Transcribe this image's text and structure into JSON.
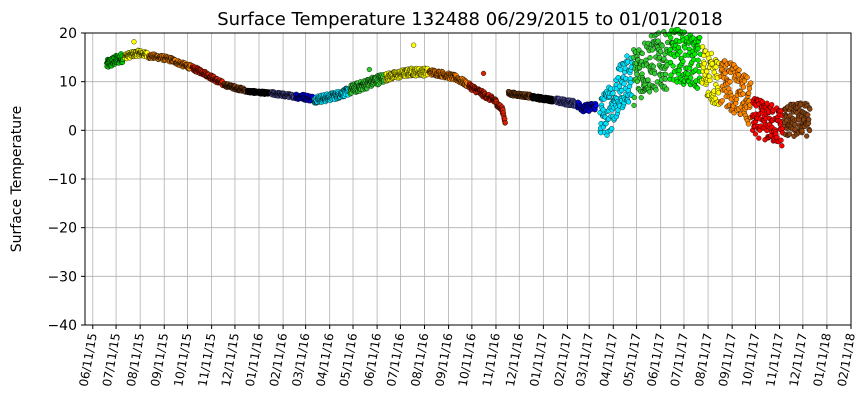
{
  "chart_data": {
    "type": "scatter",
    "title": "Surface Temperature 132488  06/29/2015 to 01/01/2018",
    "xlabel": "",
    "ylabel": "Surface Temperature",
    "ylim": [
      -40,
      20
    ],
    "yticks": [
      -40,
      -30,
      -20,
      -10,
      0,
      10,
      20
    ],
    "xlim": [
      "2015-06-01",
      "2018-02-11"
    ],
    "grid": true,
    "xticks": [
      "2015-06-11",
      "2015-07-11",
      "2015-08-11",
      "2015-09-11",
      "2015-10-11",
      "2015-11-11",
      "2015-12-11",
      "2016-01-11",
      "2016-02-11",
      "2016-03-11",
      "2016-04-11",
      "2016-05-11",
      "2016-06-11",
      "2016-07-11",
      "2016-08-11",
      "2016-09-11",
      "2016-10-11",
      "2016-11-11",
      "2016-12-11",
      "2017-01-11",
      "2017-02-11",
      "2017-03-11",
      "2017-04-11",
      "2017-05-11",
      "2017-06-11",
      "2017-07-11",
      "2017-08-11",
      "2017-09-11",
      "2017-10-11",
      "2017-11-11",
      "2017-12-11",
      "2018-01-11",
      "2018-02-11"
    ],
    "xtick_labels": [
      "06/11/15",
      "07/11/15",
      "08/11/15",
      "09/11/15",
      "10/11/15",
      "11/11/15",
      "12/11/15",
      "01/11/16",
      "02/11/16",
      "03/11/16",
      "04/11/16",
      "05/11/16",
      "06/11/16",
      "07/11/16",
      "08/11/16",
      "09/11/16",
      "10/11/16",
      "11/11/16",
      "12/11/16",
      "01/11/17",
      "02/11/17",
      "03/11/17",
      "04/11/17",
      "05/11/17",
      "06/11/17",
      "07/11/17",
      "08/11/17",
      "09/11/17",
      "10/11/17",
      "11/11/17",
      "12/11/17",
      "01/11/18",
      "02/11/18"
    ],
    "series": [
      {
        "color": "#00cc00",
        "spread": 1.0,
        "points": [
          [
            "2015-06-29",
            13.5
          ],
          [
            "2015-07-05",
            14.0
          ],
          [
            "2015-07-12",
            14.5
          ],
          [
            "2015-07-20",
            15.0
          ]
        ]
      },
      {
        "color": "#ffff00",
        "spread": 0.6,
        "points": [
          [
            "2015-07-22",
            15.2
          ],
          [
            "2015-08-01",
            15.6
          ],
          [
            "2015-08-10",
            15.9
          ],
          [
            "2015-08-20",
            15.5
          ]
        ]
      },
      {
        "color": "#ff8800",
        "spread": 0.5,
        "points": [
          [
            "2015-08-22",
            15.3
          ],
          [
            "2015-09-05",
            15.0
          ],
          [
            "2015-09-20",
            14.5
          ],
          [
            "2015-10-05",
            13.5
          ],
          [
            "2015-10-15",
            13.0
          ]
        ]
      },
      {
        "color": "#dd2200",
        "spread": 0.5,
        "points": [
          [
            "2015-10-17",
            12.8
          ],
          [
            "2015-11-01",
            11.8
          ],
          [
            "2015-11-15",
            10.5
          ],
          [
            "2015-11-25",
            9.6
          ]
        ]
      },
      {
        "color": "#8b4513",
        "spread": 0.4,
        "points": [
          [
            "2015-11-27",
            9.4
          ],
          [
            "2015-12-10",
            8.8
          ],
          [
            "2015-12-25",
            8.2
          ]
        ]
      },
      {
        "color": "#000000",
        "spread": 0.3,
        "points": [
          [
            "2015-12-27",
            8.0
          ],
          [
            "2016-01-10",
            7.8
          ],
          [
            "2016-01-25",
            7.6
          ]
        ]
      },
      {
        "color": "#5050a0",
        "spread": 0.4,
        "points": [
          [
            "2016-01-27",
            7.6
          ],
          [
            "2016-02-10",
            7.3
          ],
          [
            "2016-02-25",
            7.0
          ]
        ]
      },
      {
        "color": "#0000ee",
        "spread": 0.6,
        "points": [
          [
            "2016-02-27",
            7.0
          ],
          [
            "2016-03-10",
            6.8
          ],
          [
            "2016-03-20",
            6.5
          ]
        ]
      },
      {
        "color": "#00e5ff",
        "spread": 0.8,
        "points": [
          [
            "2016-03-22",
            6.4
          ],
          [
            "2016-04-05",
            6.6
          ],
          [
            "2016-04-20",
            7.2
          ],
          [
            "2016-05-05",
            8.0
          ]
        ]
      },
      {
        "color": "#33cc33",
        "spread": 1.0,
        "points": [
          [
            "2016-05-07",
            8.3
          ],
          [
            "2016-05-20",
            9.0
          ],
          [
            "2016-06-05",
            10.0
          ],
          [
            "2016-06-20",
            10.8
          ]
        ]
      },
      {
        "color": "#ffff00",
        "spread": 0.8,
        "points": [
          [
            "2016-06-22",
            10.9
          ],
          [
            "2016-07-10",
            11.5
          ],
          [
            "2016-07-25",
            12.0
          ],
          [
            "2016-08-15",
            12.0
          ]
        ]
      },
      {
        "color": "#ff8800",
        "spread": 0.6,
        "points": [
          [
            "2016-08-17",
            12.0
          ],
          [
            "2016-09-01",
            11.6
          ],
          [
            "2016-09-20",
            10.8
          ],
          [
            "2016-10-05",
            9.5
          ]
        ]
      },
      {
        "color": "#dd2200",
        "spread": 0.6,
        "points": [
          [
            "2016-10-07",
            9.2
          ],
          [
            "2016-10-25",
            7.5
          ],
          [
            "2016-11-10",
            6.0
          ],
          [
            "2016-11-20",
            4.0
          ],
          [
            "2016-11-23",
            1.5
          ]
        ]
      },
      {
        "color": "#8b4513",
        "spread": 0.4,
        "points": [
          [
            "2016-11-27",
            7.6
          ],
          [
            "2016-12-10",
            7.3
          ],
          [
            "2016-12-25",
            7.0
          ]
        ]
      },
      {
        "color": "#000000",
        "spread": 0.4,
        "points": [
          [
            "2016-12-27",
            6.8
          ],
          [
            "2017-01-10",
            6.5
          ],
          [
            "2017-01-25",
            6.2
          ]
        ]
      },
      {
        "color": "#5050a0",
        "spread": 0.6,
        "points": [
          [
            "2017-01-27",
            6.1
          ],
          [
            "2017-02-08",
            5.8
          ],
          [
            "2017-02-22",
            5.5
          ]
        ]
      },
      {
        "color": "#0000ee",
        "spread": 0.8,
        "points": [
          [
            "2017-02-24",
            5.2
          ],
          [
            "2017-03-05",
            4.5
          ],
          [
            "2017-03-20",
            5.0
          ]
        ]
      },
      {
        "color": "#00e5ff",
        "spread": 5.0,
        "points": [
          [
            "2017-03-25",
            3.0
          ],
          [
            "2017-04-05",
            4.0
          ],
          [
            "2017-04-15",
            7.0
          ],
          [
            "2017-04-25",
            10.0
          ],
          [
            "2017-05-05",
            11.0
          ]
        ]
      },
      {
        "color": "#33cc33",
        "spread": 6.0,
        "points": [
          [
            "2017-05-07",
            11.0
          ],
          [
            "2017-05-20",
            13.0
          ],
          [
            "2017-06-05",
            14.0
          ],
          [
            "2017-06-20",
            14.5
          ]
        ]
      },
      {
        "color": "#00ee00",
        "spread": 5.5,
        "points": [
          [
            "2017-06-22",
            15.0
          ],
          [
            "2017-07-05",
            15.5
          ],
          [
            "2017-07-20",
            14.0
          ],
          [
            "2017-08-01",
            14.0
          ]
        ]
      },
      {
        "color": "#ffff00",
        "spread": 5.0,
        "points": [
          [
            "2017-08-03",
            13.0
          ],
          [
            "2017-08-15",
            11.0
          ],
          [
            "2017-08-25",
            9.0
          ]
        ]
      },
      {
        "color": "#ff8800",
        "spread": 5.0,
        "points": [
          [
            "2017-08-27",
            10.0
          ],
          [
            "2017-09-10",
            9.0
          ],
          [
            "2017-09-25",
            7.0
          ],
          [
            "2017-10-05",
            5.0
          ]
        ]
      },
      {
        "color": "#ff0000",
        "spread": 4.0,
        "points": [
          [
            "2017-10-07",
            3.0
          ],
          [
            "2017-10-20",
            2.0
          ],
          [
            "2017-11-01",
            1.5
          ],
          [
            "2017-11-15",
            0.5
          ]
        ]
      },
      {
        "color": "#8b4513",
        "spread": 3.5,
        "points": [
          [
            "2017-11-17",
            2.0
          ],
          [
            "2017-11-30",
            2.0
          ],
          [
            "2017-12-10",
            2.5
          ],
          [
            "2017-12-20",
            2.0
          ]
        ]
      }
    ],
    "outliers": [
      {
        "date": "2015-08-03",
        "value": 18.2,
        "color": "#ffff00"
      },
      {
        "date": "2016-07-28",
        "value": 17.5,
        "color": "#ffff00"
      },
      {
        "date": "2016-10-26",
        "value": 11.7,
        "color": "#dd2200"
      },
      {
        "date": "2016-06-01",
        "value": 12.5,
        "color": "#33cc33"
      }
    ]
  }
}
